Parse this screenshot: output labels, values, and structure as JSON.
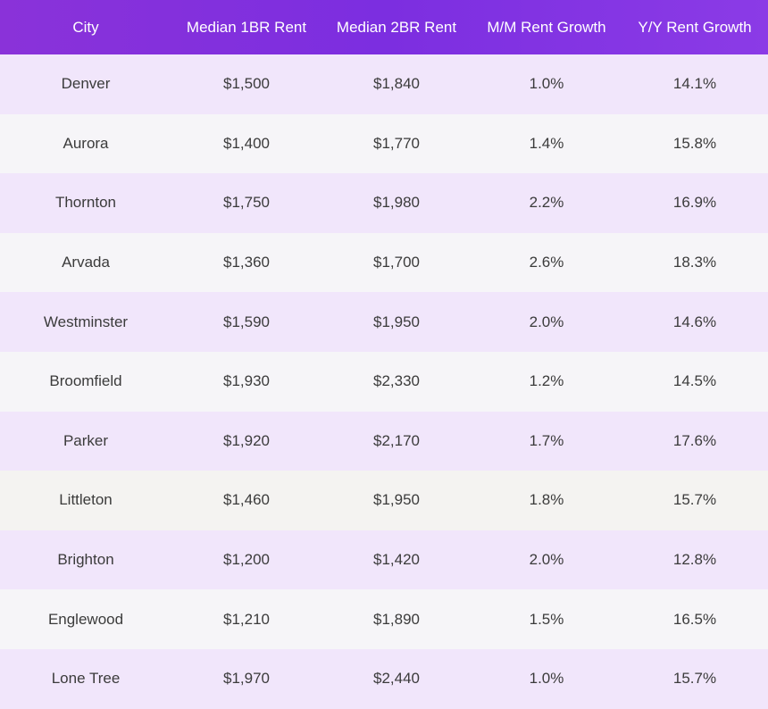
{
  "chart_data": {
    "type": "table",
    "columns": [
      "City",
      "Median 1BR Rent",
      "Median 2BR Rent",
      "M/M Rent Growth",
      "Y/Y Rent Growth"
    ],
    "rows": [
      [
        "Denver",
        "$1,500",
        "$1,840",
        "1.0%",
        "14.1%"
      ],
      [
        "Aurora",
        "$1,400",
        "$1,770",
        "1.4%",
        "15.8%"
      ],
      [
        "Thornton",
        "$1,750",
        "$1,980",
        "2.2%",
        "16.9%"
      ],
      [
        "Arvada",
        "$1,360",
        "$1,700",
        "2.6%",
        "18.3%"
      ],
      [
        "Westminster",
        "$1,590",
        "$1,950",
        "2.0%",
        "14.6%"
      ],
      [
        "Broomfield",
        "$1,930",
        "$2,330",
        "1.2%",
        "14.5%"
      ],
      [
        "Parker",
        "$1,920",
        "$2,170",
        "1.7%",
        "17.6%"
      ],
      [
        "Littleton",
        "$1,460",
        "$1,950",
        "1.8%",
        "15.7%"
      ],
      [
        "Brighton",
        "$1,200",
        "$1,420",
        "2.0%",
        "12.8%"
      ],
      [
        "Englewood",
        "$1,210",
        "$1,890",
        "1.5%",
        "16.5%"
      ],
      [
        "Lone Tree",
        "$1,970",
        "$2,440",
        "1.0%",
        "15.7%"
      ]
    ]
  },
  "colors": {
    "header_start": "#8a32d9",
    "header_end": "#8b3be6",
    "row_odd": "#f1e6fb",
    "row_even": "#f6f5f8",
    "text": "#3b3b3b"
  }
}
